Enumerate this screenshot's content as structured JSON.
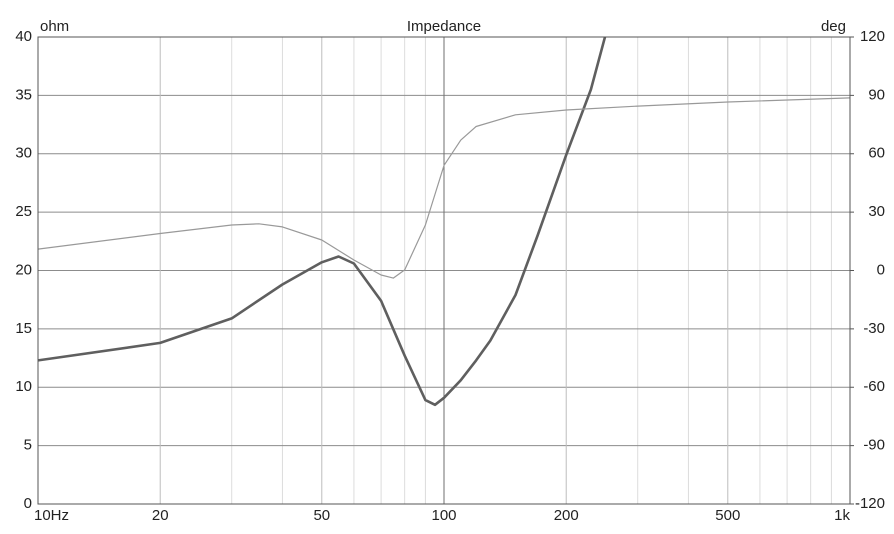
{
  "chart_data": {
    "type": "line",
    "title": "Impedance",
    "ylabel": "ohm",
    "y2label": "deg",
    "xscale": "log",
    "grid": true,
    "xlim": [
      10,
      1000
    ],
    "xticks": [
      {
        "value": 10,
        "label": "10Hz"
      },
      20,
      50,
      100,
      200,
      500,
      {
        "value": 1000,
        "label": "1k"
      }
    ],
    "xminorticks": [
      30,
      40,
      60,
      70,
      80,
      90,
      300,
      400,
      600,
      700,
      800,
      900
    ],
    "ylim": [
      0,
      40
    ],
    "yticks": [
      0,
      5,
      10,
      15,
      20,
      25,
      30,
      35,
      40
    ],
    "y2lim": [
      -120,
      120
    ],
    "y2ticks": [
      -120,
      -90,
      -60,
      -30,
      0,
      30,
      60,
      90,
      120
    ],
    "series": [
      {
        "name": "ohm",
        "color": "#5f5f5f",
        "axis": "y",
        "x": [
          10,
          20,
          30,
          40,
          50,
          55,
          60,
          70,
          80,
          90,
          95,
          100,
          110,
          120,
          130,
          150,
          170,
          200,
          230,
          250
        ],
        "values": [
          12.3,
          13.8,
          15.9,
          18.8,
          20.7,
          21.2,
          20.6,
          17.4,
          12.7,
          8.9,
          8.5,
          9.1,
          10.6,
          12.3,
          14.0,
          17.9,
          23.0,
          29.9,
          35.5,
          40.2
        ]
      },
      {
        "name": "deg",
        "color": "#999999",
        "axis": "y2",
        "x": [
          10,
          20,
          30,
          35,
          40,
          50,
          60,
          70,
          75,
          80,
          90,
          100,
          110,
          120,
          150,
          200,
          300,
          500,
          1000
        ],
        "values": [
          11,
          19,
          23.4,
          24,
          22.4,
          15.7,
          5.4,
          -2.3,
          -3.9,
          0.3,
          23.4,
          54,
          67,
          74,
          80,
          82.5,
          84.5,
          86.6,
          88.7
        ]
      }
    ]
  }
}
